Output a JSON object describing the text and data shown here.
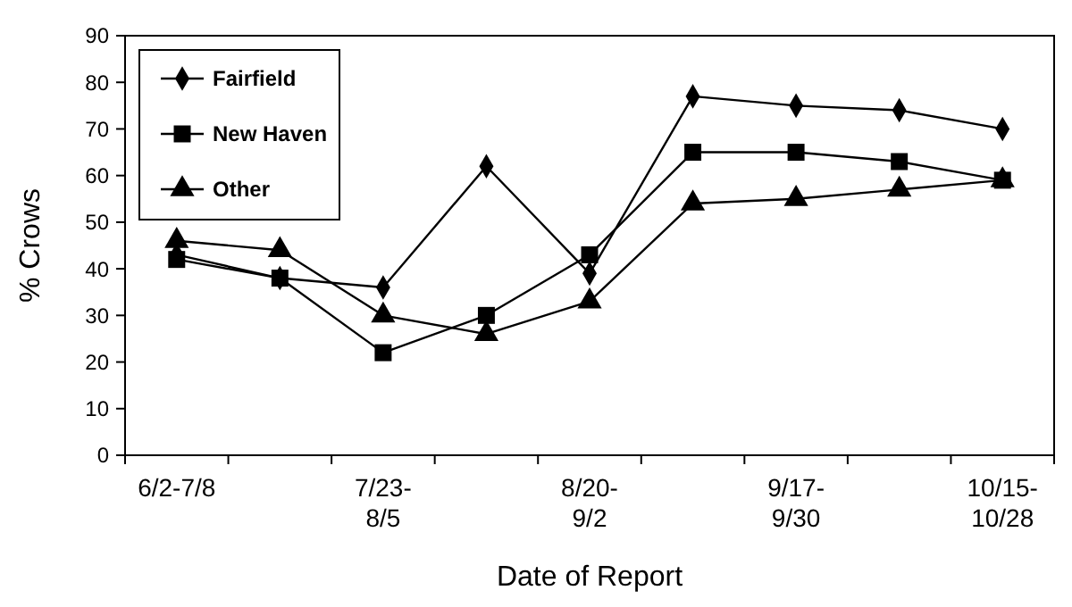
{
  "chart_data": {
    "type": "line",
    "xlabel": "Date of Report",
    "ylabel": "% Crows",
    "categories": [
      "6/2-7/8",
      null,
      "7/23-8/5",
      null,
      "8/20-9/2",
      null,
      "9/17-9/30",
      null,
      "10/15-10/28"
    ],
    "series": [
      {
        "name": "Fairfield",
        "color": "#000000",
        "marker": "diamond",
        "values": [
          43,
          38,
          36,
          62,
          39,
          77,
          75,
          74,
          70
        ]
      },
      {
        "name": "New Haven",
        "color": "#000000",
        "marker": "square",
        "values": [
          42,
          38,
          22,
          30,
          43,
          65,
          65,
          63,
          59
        ]
      },
      {
        "name": "Other",
        "color": "#000000",
        "marker": "triangle",
        "values": [
          46,
          44,
          30,
          26,
          33,
          54,
          55,
          57,
          59
        ]
      }
    ],
    "ylim": [
      0,
      90
    ],
    "yticks": [
      0,
      10,
      20,
      30,
      40,
      50,
      60,
      70,
      80,
      90
    ],
    "grid": false,
    "legend": "top left"
  }
}
